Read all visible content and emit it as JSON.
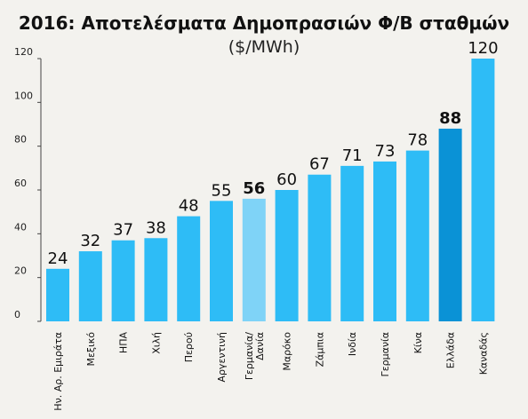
{
  "chart_data": {
    "type": "bar",
    "title": "2016: Αποτελέσματα Δημοπρασιών Φ/Β σταθμών",
    "subtitle": "($/MWh)",
    "categories": [
      [
        "Ην. Αρ. Εμιράτα"
      ],
      [
        "Μεξικό"
      ],
      [
        "ΗΠΑ"
      ],
      [
        "Χιλή"
      ],
      [
        "Περού"
      ],
      [
        "Αργεντινή"
      ],
      [
        "Γερμανία/",
        "Δανία"
      ],
      [
        "Μαρόκο"
      ],
      [
        "Ζάμπια"
      ],
      [
        "Ινδία"
      ],
      [
        "Γερμανία"
      ],
      [
        "Κίνα"
      ],
      [
        "Ελλάδα"
      ],
      [
        "Καναδάς"
      ]
    ],
    "values": [
      24,
      32,
      37,
      38,
      48,
      55,
      56,
      60,
      67,
      71,
      73,
      78,
      88,
      120
    ],
    "value_labels": [
      "24",
      "32",
      "37",
      "38",
      "48",
      "55",
      "56",
      "60",
      "67",
      "71",
      "73",
      "78",
      "88",
      "120"
    ],
    "bar_colors": [
      "#2ebcf6",
      "#2ebcf6",
      "#2ebcf6",
      "#2ebcf6",
      "#2ebcf6",
      "#2ebcf6",
      "#7fd3f7",
      "#2ebcf6",
      "#2ebcf6",
      "#2ebcf6",
      "#2ebcf6",
      "#2ebcf6",
      "#0a92d6",
      "#2ebcf6"
    ],
    "bold_labels": [
      false,
      false,
      false,
      false,
      false,
      false,
      true,
      false,
      false,
      false,
      false,
      false,
      true,
      false
    ],
    "yticks": [
      0,
      20,
      40,
      60,
      80,
      100,
      120
    ],
    "ylim": [
      0,
      120
    ],
    "grid": false,
    "xlabel": "",
    "ylabel": ""
  }
}
